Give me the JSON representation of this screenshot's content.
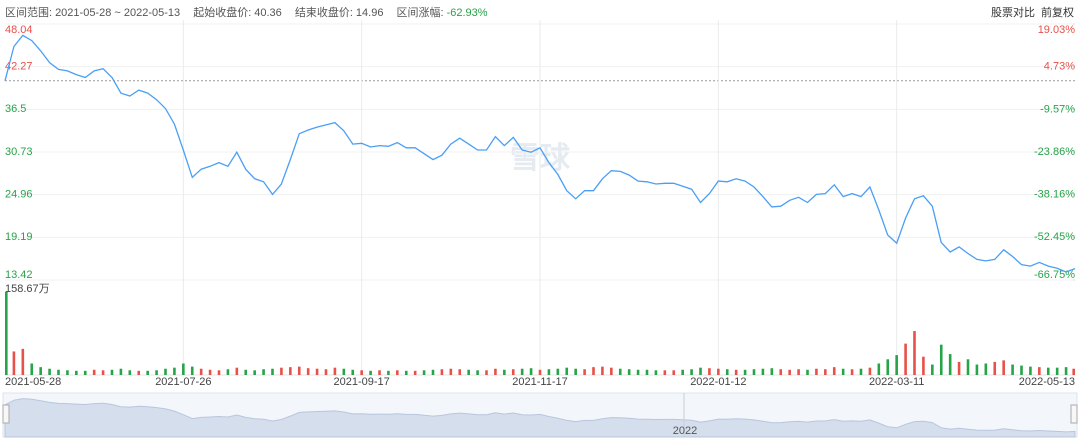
{
  "header": {
    "range_label": "区间范围:",
    "range": "2021-05-28 ~ 2022-05-13",
    "start_label": "起始收盘价:",
    "end_label": "结束收盘价:",
    "change_label": "区间涨幅:"
  },
  "toolbar": [
    "股票对比",
    "前复权"
  ],
  "chart_data": {
    "type": "line",
    "watermark": "雪球",
    "navigator_label": "2022",
    "start_close": 40.36,
    "end_close": 14.96,
    "change_pct": {
      "value": -62.93,
      "label": "-62.93%"
    },
    "line_color": "#4a9ff5",
    "up_color": "#e8504a",
    "down_color": "#27a34a",
    "grid": true,
    "categories": [
      "2021-05-28",
      null,
      null,
      null,
      null,
      null,
      null,
      null,
      null,
      null,
      null,
      null,
      null,
      null,
      null,
      null,
      null,
      null,
      null,
      null,
      "2021-07-26",
      null,
      null,
      null,
      null,
      null,
      null,
      null,
      null,
      null,
      null,
      null,
      null,
      null,
      null,
      null,
      null,
      null,
      null,
      null,
      "2021-09-17",
      null,
      null,
      null,
      null,
      null,
      null,
      null,
      null,
      null,
      null,
      null,
      null,
      null,
      null,
      null,
      null,
      null,
      null,
      null,
      "2021-11-17",
      null,
      null,
      null,
      null,
      null,
      null,
      null,
      null,
      null,
      null,
      null,
      null,
      null,
      null,
      null,
      null,
      null,
      null,
      null,
      "2022-01-12",
      null,
      null,
      null,
      null,
      null,
      null,
      null,
      null,
      null,
      null,
      null,
      null,
      null,
      null,
      null,
      null,
      null,
      null,
      null,
      "2022-03-11",
      null,
      null,
      null,
      null,
      null,
      null,
      null,
      null,
      null,
      null,
      null,
      null,
      null,
      null,
      null,
      null,
      null,
      null,
      null,
      "2022-05-13"
    ],
    "values": [
      40.36,
      45.0,
      46.5,
      45.8,
      44.4,
      42.8,
      41.9,
      41.7,
      41.2,
      40.8,
      41.7,
      42.0,
      40.8,
      38.7,
      38.3,
      39.1,
      38.7,
      37.8,
      36.6,
      34.5,
      31.0,
      27.3,
      28.4,
      28.8,
      29.3,
      28.8,
      30.7,
      28.4,
      27.1,
      26.7,
      25.0,
      26.4,
      29.7,
      33.2,
      33.7,
      34.1,
      34.4,
      34.7,
      33.6,
      31.8,
      31.9,
      31.4,
      31.6,
      31.5,
      32.0,
      31.3,
      31.3,
      30.5,
      29.7,
      30.3,
      31.8,
      32.6,
      31.8,
      31.0,
      31.0,
      32.8,
      31.6,
      32.7,
      31.0,
      30.7,
      31.3,
      29.3,
      27.7,
      25.5,
      24.4,
      25.5,
      25.5,
      27.1,
      28.2,
      28.1,
      27.6,
      26.8,
      26.7,
      26.4,
      26.5,
      26.5,
      26.1,
      25.7,
      23.9,
      25.1,
      26.8,
      26.7,
      27.1,
      26.8,
      26.0,
      24.7,
      23.3,
      23.4,
      24.2,
      24.6,
      23.9,
      25.0,
      25.1,
      26.3,
      24.7,
      25.1,
      24.7,
      26.0,
      22.9,
      19.5,
      18.4,
      21.8,
      24.4,
      24.8,
      23.4,
      18.5,
      17.2,
      17.9,
      17.0,
      16.2,
      16.0,
      16.2,
      17.5,
      16.6,
      15.5,
      15.3,
      15.8,
      15.3,
      15.0,
      14.5,
      14.96
    ],
    "ylim": [
      13.42,
      48.04
    ],
    "yticks": [
      48.04,
      42.27,
      36.5,
      30.73,
      24.96,
      19.19,
      13.42
    ],
    "y2lim": [
      -66.75,
      19.03
    ],
    "y2ticks": [
      {
        "value": 19.03,
        "label": "19.03%"
      },
      {
        "value": 4.73,
        "label": "4.73%"
      },
      {
        "value": -9.57,
        "label": "-9.57%"
      },
      {
        "value": -23.86,
        "label": "-23.86%"
      },
      {
        "value": -38.16,
        "label": "-38.16%"
      },
      {
        "value": -52.45,
        "label": "-52.45%"
      },
      {
        "value": -66.75,
        "label": "-66.75%"
      }
    ],
    "volume": {
      "ylim": [
        0,
        158.67
      ],
      "yticks": [
        {
          "value": 158.67,
          "label": "158.67万"
        }
      ],
      "values": [
        158.67,
        45,
        50,
        22,
        15,
        12,
        10,
        9,
        8,
        8,
        10,
        9,
        10,
        12,
        9,
        8,
        8,
        9,
        12,
        14,
        22,
        16,
        12,
        10,
        9,
        11,
        14,
        10,
        9,
        11,
        12,
        14,
        15,
        16,
        13,
        12,
        11,
        14,
        12,
        10,
        9,
        8,
        9,
        8,
        9,
        8,
        8,
        9,
        10,
        11,
        12,
        11,
        10,
        9,
        9,
        12,
        10,
        11,
        12,
        13,
        10,
        11,
        12,
        14,
        12,
        11,
        15,
        16,
        14,
        12,
        11,
        10,
        10,
        9,
        9,
        9,
        10,
        11,
        14,
        13,
        12,
        11,
        10,
        10,
        11,
        12,
        13,
        11,
        10,
        11,
        10,
        12,
        11,
        15,
        12,
        11,
        12,
        14,
        22,
        30,
        38,
        60,
        84,
        35,
        20,
        58,
        40,
        25,
        30,
        20,
        22,
        25,
        28,
        20,
        18,
        16,
        15,
        14,
        14,
        15,
        12
      ]
    }
  }
}
